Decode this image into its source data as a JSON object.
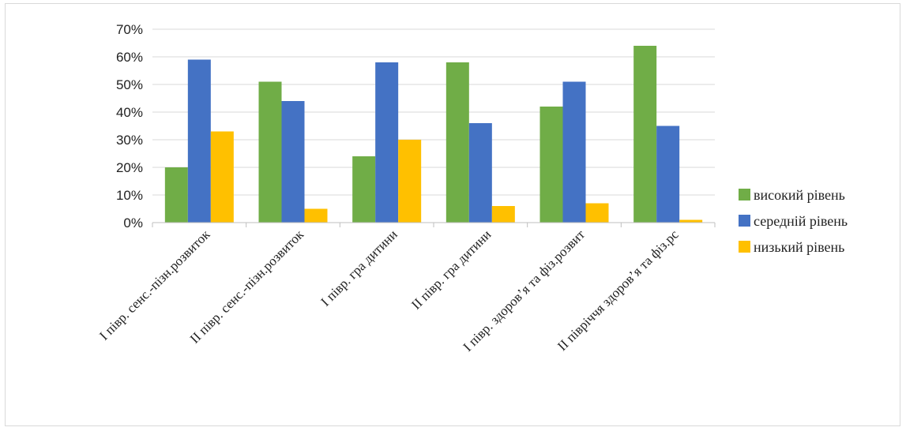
{
  "chart_data": {
    "type": "bar",
    "categories": [
      "I півр. сенс.-пізн.розвиток",
      "II півр. сенс.-пізн.розвиток",
      "I півр. гра дитини",
      "II півр. гра дитини",
      "I півр. здоров’я та фіз.розвит",
      "II півріччя здоров’я та фіз.рс"
    ],
    "series": [
      {
        "name": "високий рівень",
        "color": "#70ad47",
        "values": [
          20,
          51,
          24,
          58,
          42,
          64
        ]
      },
      {
        "name": "середній рівень",
        "color": "#4472c4",
        "values": [
          59,
          44,
          58,
          36,
          51,
          35
        ]
      },
      {
        "name": "низький рівень",
        "color": "#ffc000",
        "values": [
          33,
          5,
          30,
          6,
          7,
          1
        ]
      }
    ],
    "yticks": [
      "0%",
      "10%",
      "20%",
      "30%",
      "40%",
      "50%",
      "60%",
      "70%"
    ],
    "ylim": [
      0,
      70
    ],
    "grid": true,
    "legend": "right"
  }
}
